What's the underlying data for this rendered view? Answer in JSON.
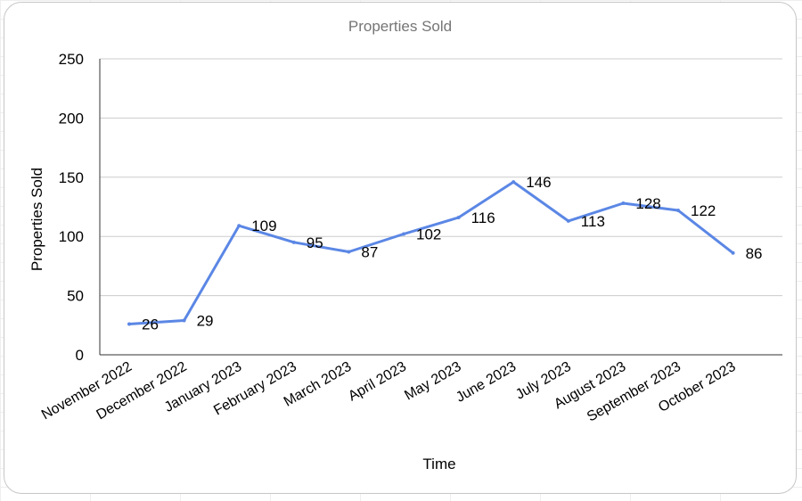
{
  "chart_data": {
    "type": "line",
    "title": "Properties Sold",
    "xlabel": "Time",
    "ylabel": "Properties Sold",
    "ylim": [
      0,
      250
    ],
    "yticks": [
      0,
      50,
      100,
      150,
      200,
      250
    ],
    "grid": true,
    "legend": "none",
    "categories": [
      "November 2022",
      "December 2022",
      "January 2023",
      "February 2023",
      "March 2023",
      "April 2023",
      "May 2023",
      "June 2023",
      "July 2023",
      "August 2023",
      "September 2023",
      "October 2023"
    ],
    "series": [
      {
        "values": [
          26,
          29,
          109,
          95,
          87,
          102,
          116,
          146,
          113,
          128,
          122,
          86
        ],
        "color": "#5b87e5"
      }
    ],
    "colors": {
      "title": "#757575",
      "text": "#000000",
      "grid": "#cccccc"
    }
  }
}
